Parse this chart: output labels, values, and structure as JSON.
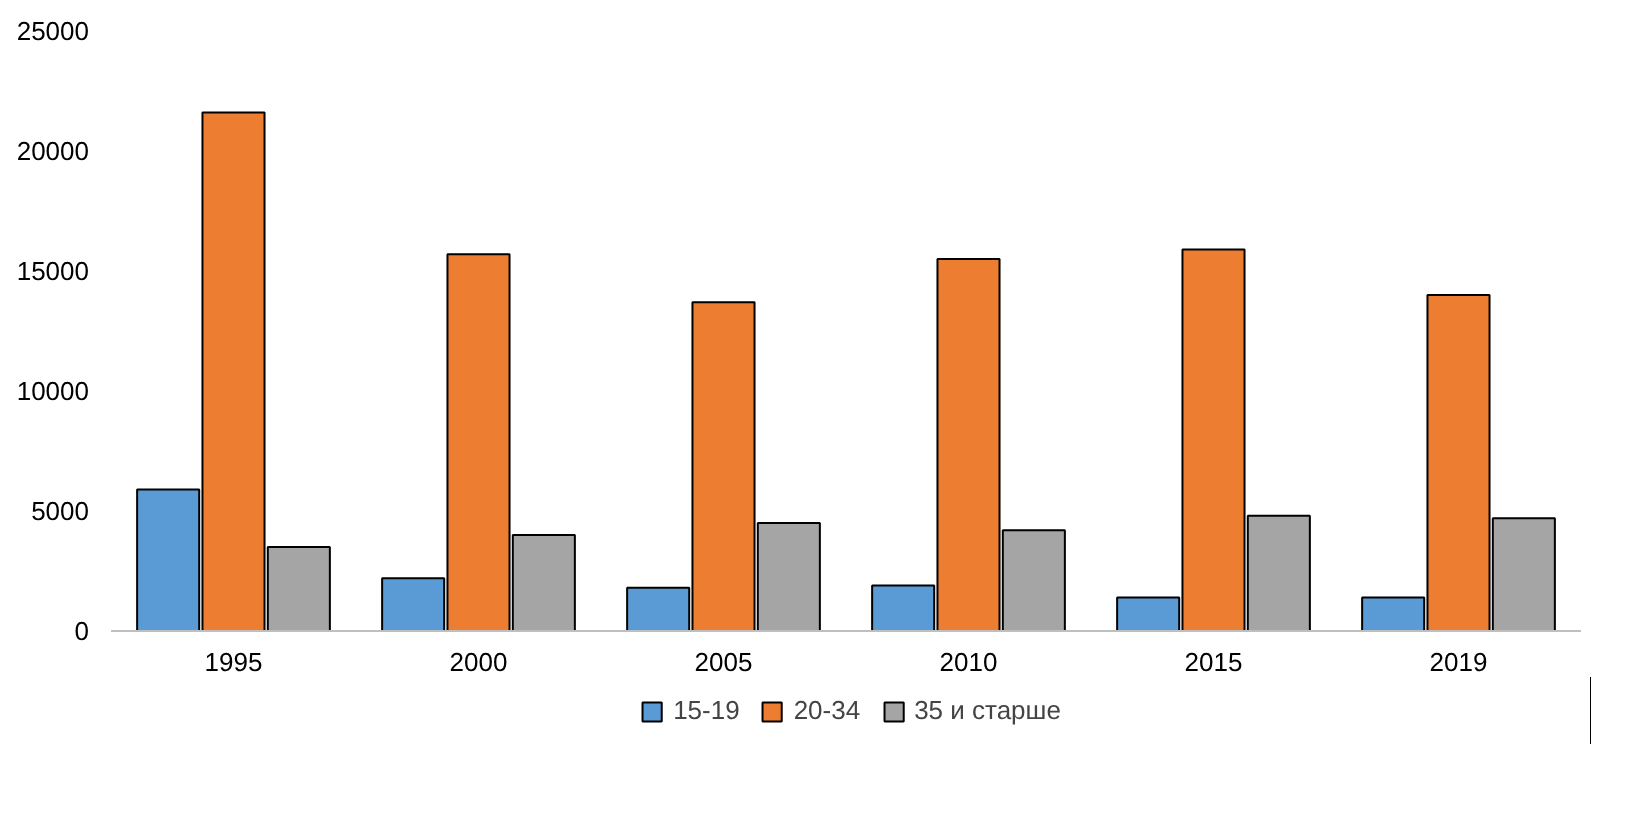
{
  "chart_data": {
    "type": "bar",
    "categories": [
      "1995",
      "2000",
      "2005",
      "2010",
      "2015",
      "2019"
    ],
    "series": [
      {
        "name": "15-19",
        "color": "#5b9bd5",
        "values": [
          5900,
          2200,
          1800,
          1900,
          1400,
          1400
        ]
      },
      {
        "name": "20-34",
        "color": "#ed7d31",
        "values": [
          21600,
          15700,
          13700,
          15500,
          15900,
          14000
        ]
      },
      {
        "name": "35 и старше",
        "color": "#a5a5a5",
        "values": [
          3500,
          4000,
          4500,
          4200,
          4800,
          4700
        ]
      }
    ],
    "ylim": [
      0,
      25000
    ],
    "yticks": [
      0,
      5000,
      10000,
      15000,
      20000,
      25000
    ],
    "grid": false,
    "legend": "bottom"
  }
}
